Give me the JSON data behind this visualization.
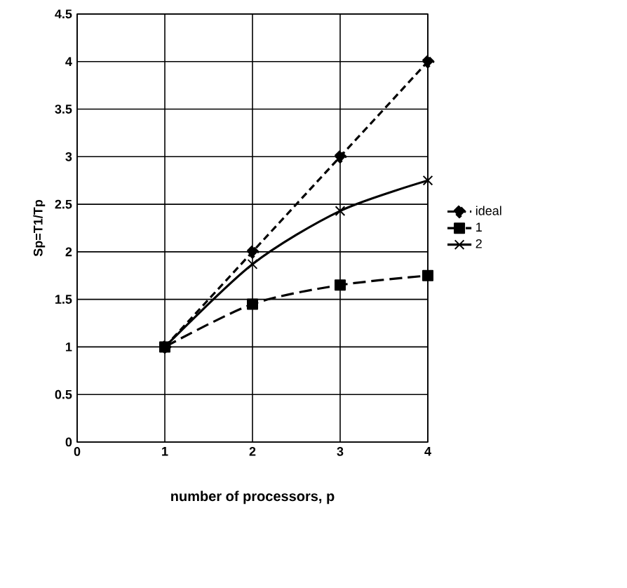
{
  "chart_data": {
    "type": "line",
    "xlabel": "number of processors, p",
    "ylabel": "Sp=T1/Tp",
    "x": [
      1,
      2,
      3,
      4
    ],
    "series": [
      {
        "name": "ideal",
        "color": "#000000",
        "values": [
          1,
          2,
          3,
          4
        ],
        "marker": "diamond",
        "line_style": "dashed"
      },
      {
        "name": "1",
        "color": "#000000",
        "values": [
          1,
          1.45,
          1.65,
          1.75
        ],
        "marker": "square",
        "line_style": "dashed"
      },
      {
        "name": "2",
        "color": "#000000",
        "values": [
          1,
          1.87,
          2.43,
          2.75
        ],
        "marker": "cross",
        "line_style": "solid"
      }
    ],
    "xlim": [
      0,
      4
    ],
    "xticks": [
      0,
      1,
      2,
      3,
      4
    ],
    "ylim": [
      0,
      4.5
    ],
    "yticks": [
      0,
      0.5,
      1,
      1.5,
      2,
      2.5,
      3,
      3.5,
      4,
      4.5
    ],
    "grid": true,
    "legend": "right"
  }
}
